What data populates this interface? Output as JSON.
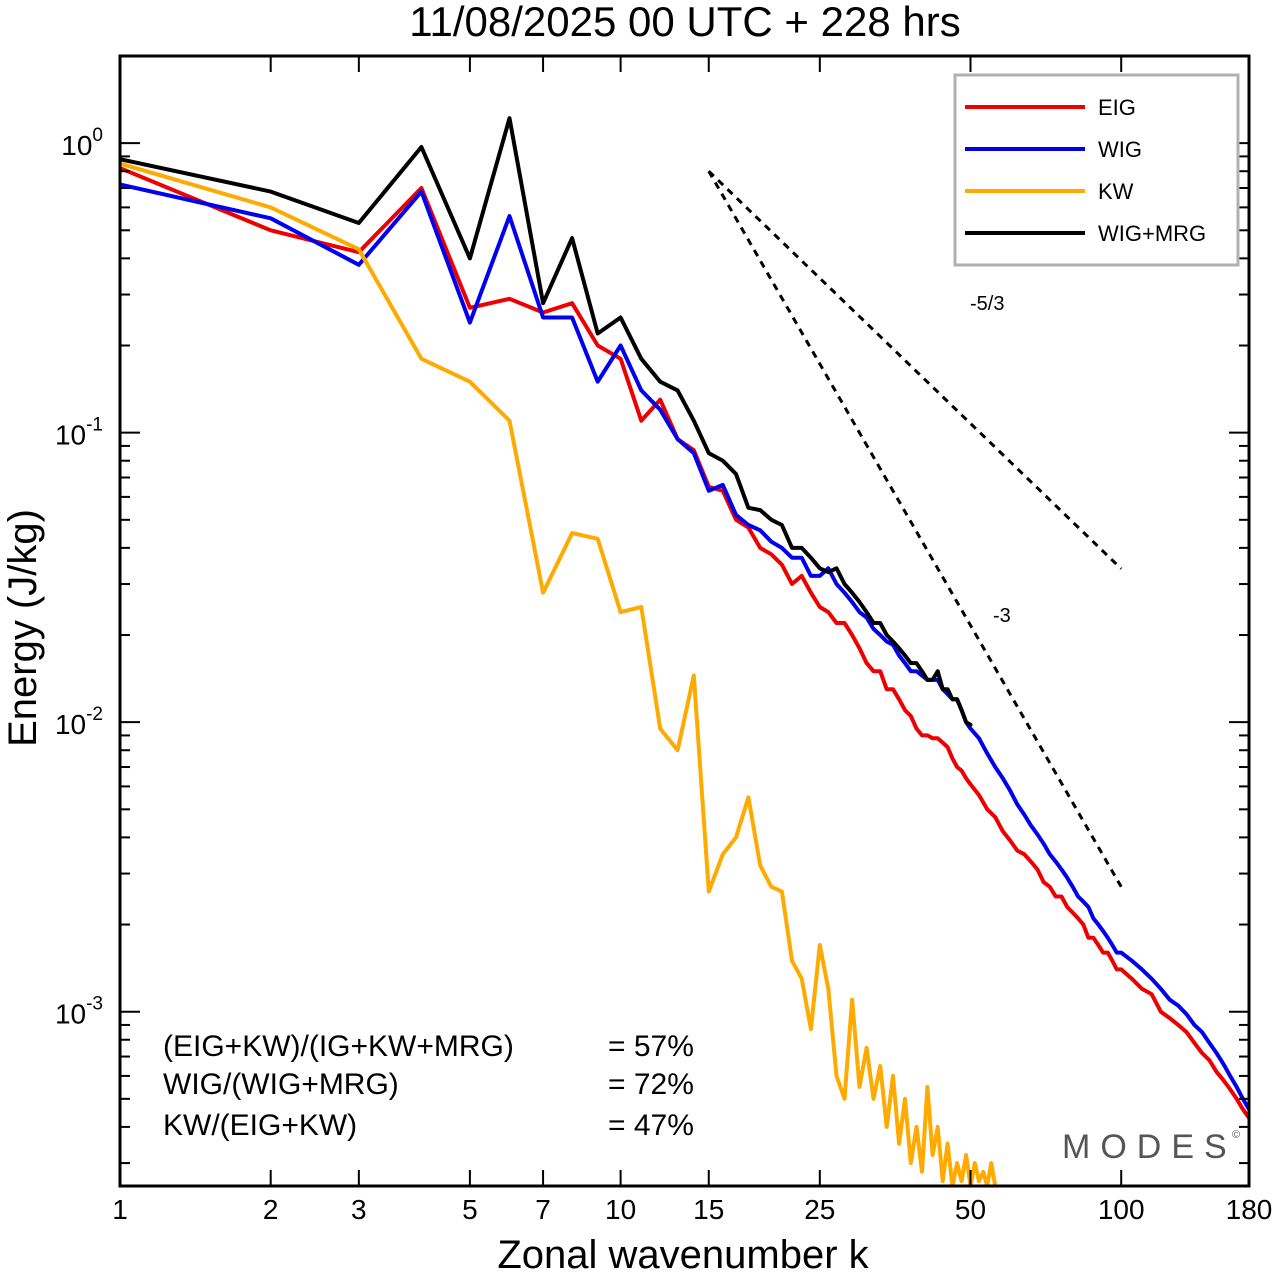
{
  "chart_data": {
    "type": "line",
    "title": "11/08/2025  00 UTC  + 228 hrs",
    "xlabel": "Zonal wavenumber k",
    "ylabel": "Energy (J/kg)",
    "xscale": "log",
    "yscale": "log",
    "xlim": [
      1,
      180
    ],
    "ylim": [
      0.00025,
      2.0
    ],
    "xticks": [
      1,
      2,
      3,
      5,
      7,
      10,
      15,
      25,
      50,
      100,
      180
    ],
    "yticks": [
      {
        "value": 1,
        "base": "10",
        "exp": "0"
      },
      {
        "value": 0.1,
        "base": "10",
        "exp": "-1"
      },
      {
        "value": 0.01,
        "base": "10",
        "exp": "-2"
      },
      {
        "value": 0.001,
        "base": "10",
        "exp": "-3"
      }
    ],
    "legend_position": "top-right",
    "series": [
      {
        "name": "EIG",
        "color": "#ee0000",
        "x": [
          1,
          2,
          3,
          4,
          5,
          6,
          7,
          8,
          9,
          10,
          11,
          12,
          13,
          14,
          15,
          16,
          17,
          18,
          19,
          20,
          21,
          22,
          23,
          24,
          25,
          26,
          27,
          28,
          29,
          30,
          31,
          32,
          33,
          34,
          35,
          36,
          37,
          38,
          39,
          40,
          41,
          42,
          43,
          44,
          45,
          46,
          47,
          48,
          49,
          50,
          52,
          54,
          56,
          58,
          60,
          62,
          64,
          66,
          68,
          70,
          72,
          74,
          76,
          78,
          80,
          82,
          84,
          86,
          88,
          90,
          92,
          94,
          96,
          98,
          100,
          105,
          110,
          115,
          120,
          125,
          130,
          135,
          140,
          145,
          150,
          155,
          160,
          165,
          170,
          175,
          180
        ],
        "y": [
          0.82,
          0.5,
          0.42,
          0.7,
          0.27,
          0.29,
          0.26,
          0.28,
          0.2,
          0.18,
          0.11,
          0.13,
          0.095,
          0.087,
          0.065,
          0.063,
          0.05,
          0.047,
          0.04,
          0.038,
          0.035,
          0.03,
          0.032,
          0.028,
          0.025,
          0.024,
          0.022,
          0.022,
          0.02,
          0.018,
          0.016,
          0.015,
          0.015,
          0.013,
          0.013,
          0.012,
          0.011,
          0.0105,
          0.0095,
          0.009,
          0.009,
          0.0088,
          0.0088,
          0.0085,
          0.0082,
          0.0075,
          0.007,
          0.0068,
          0.0064,
          0.0061,
          0.0056,
          0.005,
          0.0047,
          0.0042,
          0.0039,
          0.0036,
          0.0035,
          0.0033,
          0.0031,
          0.0028,
          0.0027,
          0.0025,
          0.0025,
          0.0023,
          0.0022,
          0.0021,
          0.002,
          0.0018,
          0.0018,
          0.0017,
          0.0016,
          0.0016,
          0.0015,
          0.0014,
          0.0014,
          0.0013,
          0.0012,
          0.00115,
          0.001,
          0.00095,
          0.0009,
          0.00085,
          0.00078,
          0.00072,
          0.00068,
          0.00062,
          0.00058,
          0.00054,
          0.0005,
          0.00046,
          0.00043
        ]
      },
      {
        "name": "WIG",
        "color": "#0000ee",
        "x": [
          1,
          2,
          3,
          4,
          5,
          6,
          7,
          8,
          9,
          10,
          11,
          12,
          13,
          14,
          15,
          16,
          17,
          18,
          19,
          20,
          21,
          22,
          23,
          24,
          25,
          26,
          27,
          28,
          29,
          30,
          31,
          32,
          33,
          34,
          35,
          36,
          37,
          38,
          39,
          40,
          41,
          42,
          43,
          44,
          45,
          46,
          47,
          48,
          49,
          50,
          52,
          54,
          56,
          58,
          60,
          62,
          64,
          66,
          68,
          70,
          72,
          74,
          76,
          78,
          80,
          82,
          84,
          86,
          88,
          90,
          92,
          94,
          96,
          98,
          100,
          105,
          110,
          115,
          120,
          125,
          130,
          135,
          140,
          145,
          150,
          155,
          160,
          165,
          170,
          175,
          180
        ],
        "y": [
          0.72,
          0.55,
          0.38,
          0.68,
          0.24,
          0.56,
          0.25,
          0.25,
          0.15,
          0.2,
          0.14,
          0.12,
          0.095,
          0.085,
          0.063,
          0.066,
          0.052,
          0.048,
          0.046,
          0.042,
          0.04,
          0.037,
          0.037,
          0.032,
          0.032,
          0.034,
          0.03,
          0.028,
          0.026,
          0.024,
          0.023,
          0.021,
          0.02,
          0.019,
          0.0185,
          0.017,
          0.016,
          0.015,
          0.015,
          0.0145,
          0.014,
          0.014,
          0.014,
          0.013,
          0.0125,
          0.012,
          0.012,
          0.011,
          0.01,
          0.0095,
          0.0088,
          0.0078,
          0.007,
          0.0064,
          0.0058,
          0.0052,
          0.0048,
          0.0044,
          0.0041,
          0.0038,
          0.0035,
          0.0033,
          0.0031,
          0.0029,
          0.0027,
          0.0025,
          0.0024,
          0.0023,
          0.0021,
          0.002,
          0.0019,
          0.0018,
          0.0017,
          0.0016,
          0.0016,
          0.0015,
          0.0014,
          0.0013,
          0.0012,
          0.0011,
          0.00105,
          0.00098,
          0.0009,
          0.00085,
          0.00078,
          0.00072,
          0.00066,
          0.0006,
          0.00055,
          0.0005,
          0.00046
        ]
      },
      {
        "name": "KW",
        "color": "#ffaa00",
        "x": [
          1,
          2,
          3,
          4,
          5,
          6,
          7,
          8,
          9,
          10,
          11,
          12,
          13,
          14,
          15,
          16,
          17,
          18,
          19,
          20,
          21,
          22,
          23,
          24,
          25,
          26,
          27,
          28,
          29,
          30,
          31,
          32,
          33,
          34,
          35,
          36,
          37,
          38,
          39,
          40,
          41,
          42,
          43,
          44,
          45,
          46,
          47,
          48,
          49,
          50,
          51,
          52,
          53,
          54,
          55,
          56
        ],
        "y": [
          0.85,
          0.6,
          0.43,
          0.18,
          0.15,
          0.11,
          0.028,
          0.045,
          0.043,
          0.024,
          0.025,
          0.0095,
          0.008,
          0.0145,
          0.0026,
          0.0035,
          0.004,
          0.0055,
          0.0032,
          0.0027,
          0.0026,
          0.0015,
          0.0013,
          0.00087,
          0.0017,
          0.0012,
          0.0006,
          0.0005,
          0.0011,
          0.00055,
          0.00075,
          0.0005,
          0.00065,
          0.0004,
          0.0006,
          0.00035,
          0.0005,
          0.0003,
          0.0004,
          0.00028,
          0.00055,
          0.00032,
          0.0004,
          0.00026,
          0.00035,
          0.00025,
          0.0003,
          0.00026,
          0.00032,
          0.00025,
          0.0003,
          0.00026,
          0.00028,
          0.00025,
          0.0003,
          0.00025
        ]
      },
      {
        "name": "WIG+MRG",
        "color": "#000000",
        "x": [
          1,
          2,
          3,
          4,
          5,
          6,
          7,
          8,
          9,
          10,
          11,
          12,
          13,
          14,
          15,
          16,
          17,
          18,
          19,
          20,
          21,
          22,
          23,
          24,
          25,
          26,
          27,
          28,
          29,
          30,
          31,
          32,
          33,
          34,
          35,
          36,
          37,
          38,
          39,
          40,
          41,
          42,
          43,
          44,
          45,
          46,
          47,
          48,
          49,
          50
        ],
        "y": [
          0.88,
          0.68,
          0.53,
          0.97,
          0.4,
          1.22,
          0.28,
          0.47,
          0.22,
          0.25,
          0.18,
          0.15,
          0.14,
          0.11,
          0.085,
          0.08,
          0.072,
          0.055,
          0.054,
          0.05,
          0.048,
          0.04,
          0.04,
          0.037,
          0.034,
          0.033,
          0.034,
          0.03,
          0.028,
          0.026,
          0.024,
          0.022,
          0.022,
          0.02,
          0.019,
          0.018,
          0.017,
          0.016,
          0.016,
          0.015,
          0.014,
          0.014,
          0.015,
          0.013,
          0.013,
          0.012,
          0.012,
          0.011,
          0.01,
          0.0098
        ]
      }
    ],
    "reference_lines": [
      {
        "label": "-5/3",
        "slope": -1.6667,
        "k_start": 15,
        "k_end": 100,
        "e_start": 0.8
      },
      {
        "label": "-3",
        "slope": -3.0,
        "k_start": 15,
        "k_end": 100,
        "e_start": 0.8
      }
    ],
    "annotations": {
      "ratio_lines": [
        {
          "label": "(EIG+KW)/(IG+KW+MRG)",
          "value": "= 57%"
        },
        {
          "label": "WIG/(WIG+MRG)",
          "value": "= 72%"
        },
        {
          "label": "KW/(EIG+KW)",
          "value": "= 47%"
        }
      ],
      "brand": "MODES",
      "brand_mark": "©"
    }
  }
}
